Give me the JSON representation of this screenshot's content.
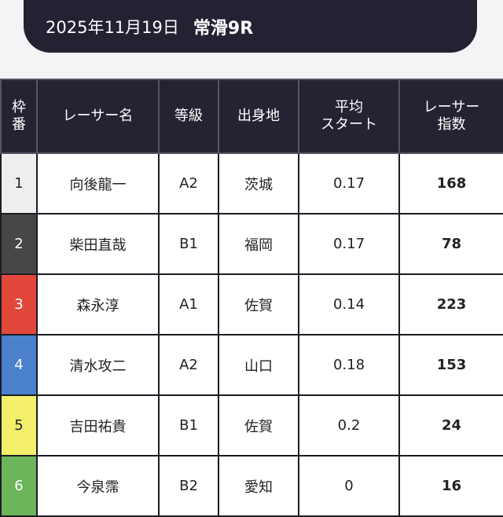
{
  "header": {
    "date": "2025年11月19日",
    "race": "常滑9R"
  },
  "table": {
    "columns": {
      "waku": "枠\n番",
      "name": "レーサー名",
      "grade": "等級",
      "home": "出身地",
      "start": "平均\nスタート",
      "index": "レーサー\n指数"
    },
    "rows": [
      {
        "waku": "1",
        "name": "向後龍一",
        "grade": "A2",
        "home": "茨城",
        "start": "0.17",
        "index": "168",
        "color": "#eeeeee"
      },
      {
        "waku": "2",
        "name": "柴田直哉",
        "grade": "B1",
        "home": "福岡",
        "start": "0.17",
        "index": "78",
        "color": "#474747"
      },
      {
        "waku": "3",
        "name": "森永淳",
        "grade": "A1",
        "home": "佐賀",
        "start": "0.14",
        "index": "223",
        "color": "#e2473c"
      },
      {
        "waku": "4",
        "name": "清水攻二",
        "grade": "A2",
        "home": "山口",
        "start": "0.18",
        "index": "153",
        "color": "#4a80cc"
      },
      {
        "waku": "5",
        "name": "吉田祐貴",
        "grade": "B1",
        "home": "佐賀",
        "start": "0.2",
        "index": "24",
        "color": "#f3ef6b"
      },
      {
        "waku": "6",
        "name": "今泉霈",
        "grade": "B2",
        "home": "愛知",
        "start": "0",
        "index": "16",
        "color": "#6cb55a"
      }
    ]
  }
}
